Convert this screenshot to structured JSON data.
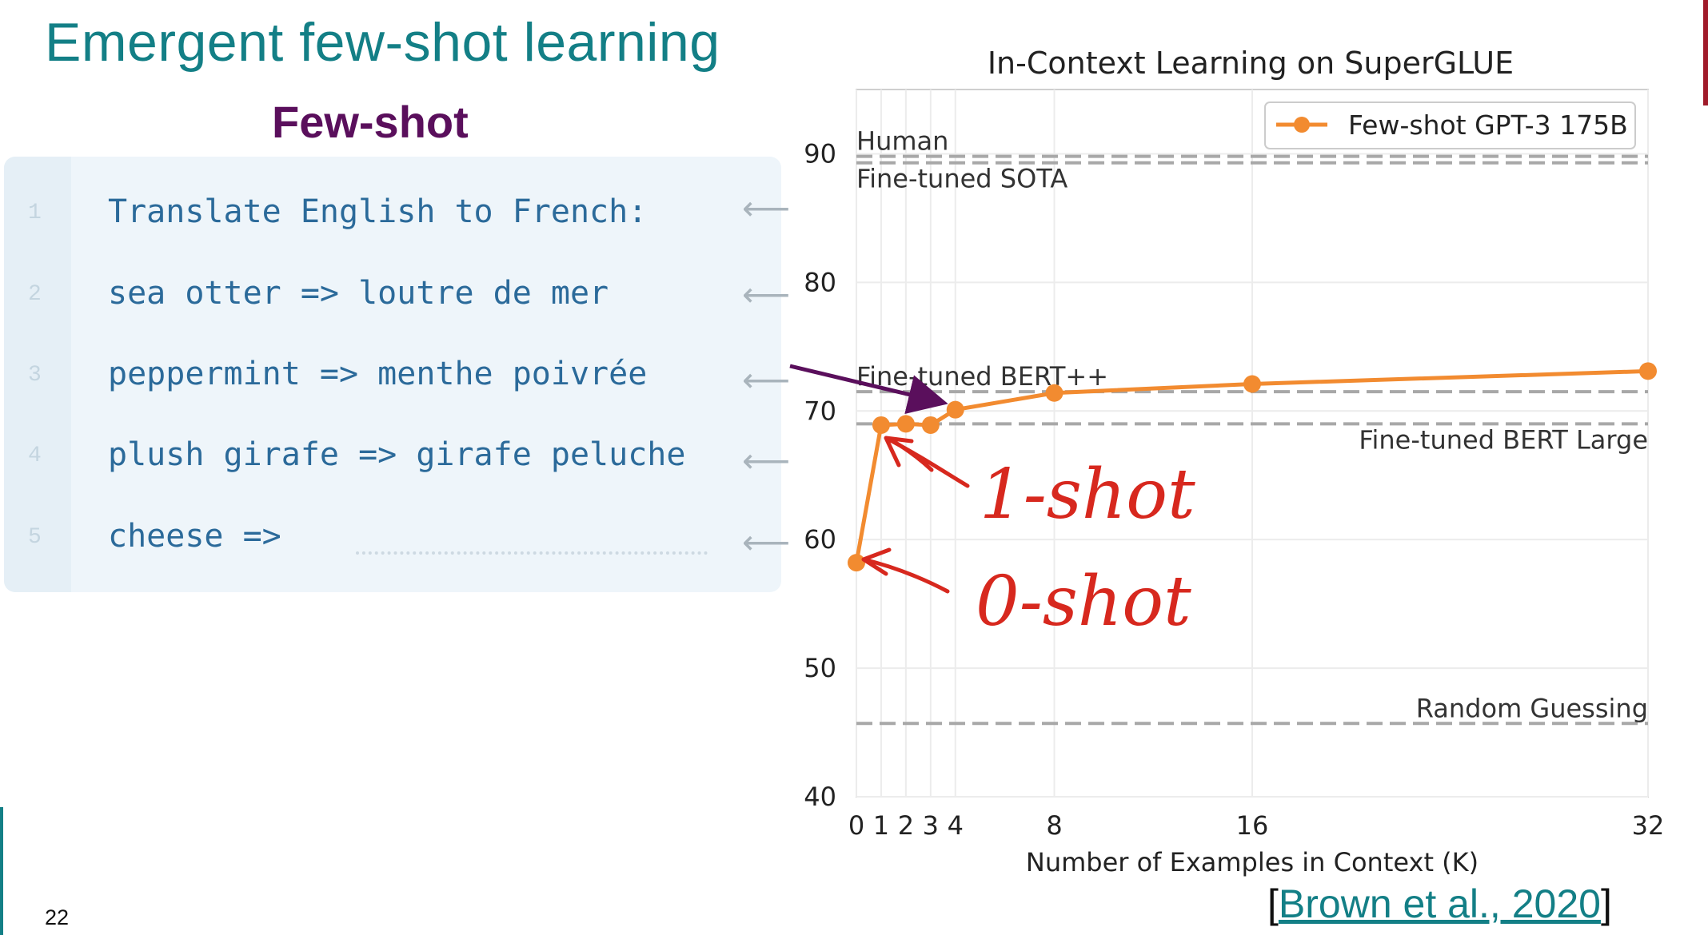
{
  "slide": {
    "title": "Emergent few-shot learning",
    "subtitle": "Few-shot",
    "page_number": "22",
    "citation_open": "[",
    "citation_link": "Brown et al., 2020",
    "citation_close": "]",
    "accent_color": "#137f86",
    "heading_color": "#5a0f5c"
  },
  "prompt": {
    "lines": [
      {
        "num": "1",
        "text": "Translate English to French:"
      },
      {
        "num": "2",
        "text": "sea otter => loutre de mer"
      },
      {
        "num": "3",
        "text": "peppermint => menthe poivrée"
      },
      {
        "num": "4",
        "text": "plush girafe => girafe peluche"
      },
      {
        "num": "5",
        "text": "cheese =>"
      }
    ],
    "arrow_glyph": "⟵"
  },
  "annotations": {
    "one_shot": "1-shot",
    "zero_shot": "0-shot",
    "color": "#d7281e",
    "pointer_color": "#5a0f5c"
  },
  "chart_data": {
    "type": "line",
    "title": "In-Context Learning on SuperGLUE",
    "xlabel": "Number of Examples in Context (K)",
    "ylabel": "",
    "x_ticks": [
      0,
      1,
      2,
      3,
      4,
      8,
      16,
      32
    ],
    "y_ticks": [
      40,
      50,
      60,
      70,
      80,
      90
    ],
    "xlim": [
      0,
      32
    ],
    "ylim": [
      40,
      95
    ],
    "grid": true,
    "legend_position": "top-right",
    "series": [
      {
        "name": "Few-shot GPT-3 175B",
        "color": "#f28b30",
        "x": [
          0,
          1,
          2,
          3,
          4,
          8,
          16,
          32
        ],
        "y": [
          58.2,
          68.9,
          69.0,
          68.9,
          70.1,
          71.4,
          72.1,
          73.1
        ]
      }
    ],
    "reference_lines": [
      {
        "label": "Human",
        "value": 89.8
      },
      {
        "label": "Fine-tuned SOTA",
        "value": 89.3
      },
      {
        "label": "Fine-tuned BERT++",
        "value": 71.5
      },
      {
        "label": "Fine-tuned BERT Large",
        "value": 69.0
      },
      {
        "label": "Random Guessing",
        "value": 45.7
      }
    ]
  }
}
